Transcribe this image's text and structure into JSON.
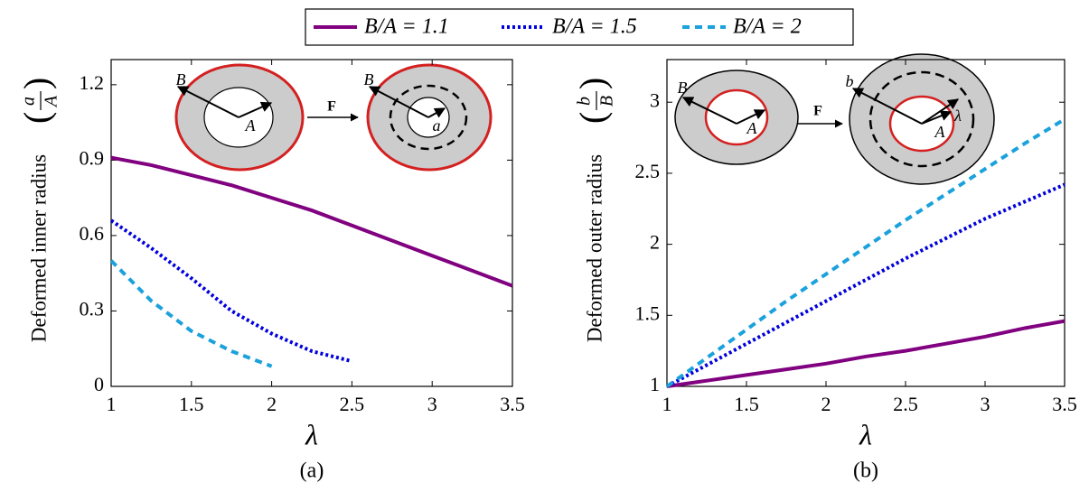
{
  "legend": {
    "position": "top-center"
  },
  "chart_data": [
    {
      "type": "line",
      "xlabel": "λ",
      "ylabel": "Deformed inner radius",
      "ylabel_num": "a",
      "ylabel_den": "A",
      "caption": "(a)",
      "inset_labels": [
        "B",
        "A",
        "F",
        "B",
        "a"
      ],
      "x": [
        1,
        1.25,
        1.5,
        1.75,
        2,
        2.25,
        2.5,
        2.75,
        3,
        3.25,
        3.5
      ],
      "xlim": [
        1,
        3.5
      ],
      "xticks": [
        1,
        1.5,
        2,
        2.5,
        3,
        3.5
      ],
      "ylim": [
        0,
        1.3
      ],
      "yticks": [
        0,
        0.3,
        0.6,
        0.9,
        1.2
      ],
      "series": [
        {
          "name": "B/A = 1.1",
          "color": "#800080",
          "style": "solid",
          "values": [
            0.91,
            0.88,
            0.84,
            0.8,
            0.75,
            0.7,
            0.64,
            0.58,
            0.52,
            0.46,
            0.4
          ]
        },
        {
          "name": "B/A = 1.5",
          "color": "#0000dd",
          "style": "dotted",
          "values": [
            0.66,
            0.55,
            0.43,
            0.3,
            0.21,
            0.14,
            0.1,
            null,
            null,
            null,
            null
          ]
        },
        {
          "name": "B/A = 2",
          "color": "#1ba1dc",
          "style": "dashed",
          "values": [
            0.5,
            0.34,
            0.22,
            0.14,
            0.08,
            null,
            null,
            null,
            null,
            null,
            null
          ]
        }
      ]
    },
    {
      "type": "line",
      "xlabel": "λ",
      "ylabel": "Deformed outer radius",
      "ylabel_num": "b",
      "ylabel_den": "B",
      "caption": "(b)",
      "inset_labels": [
        "B",
        "A",
        "F",
        "b",
        "λ",
        "A"
      ],
      "x": [
        1,
        1.25,
        1.5,
        1.75,
        2,
        2.25,
        2.5,
        2.75,
        3,
        3.25,
        3.5
      ],
      "xlim": [
        1,
        3.5
      ],
      "xticks": [
        1,
        1.5,
        2,
        2.5,
        3,
        3.5
      ],
      "ylim": [
        1,
        3.3
      ],
      "yticks": [
        1,
        1.5,
        2,
        2.5,
        3
      ],
      "series": [
        {
          "color": "#800080",
          "style": "solid",
          "values": [
            1,
            1.04,
            1.08,
            1.12,
            1.16,
            1.21,
            1.25,
            1.3,
            1.35,
            1.41,
            1.46
          ]
        },
        {
          "color": "#0000dd",
          "style": "dotted",
          "values": [
            1,
            1.15,
            1.3,
            1.45,
            1.6,
            1.75,
            1.9,
            2.04,
            2.18,
            2.3,
            2.42
          ]
        },
        {
          "color": "#1ba1dc",
          "style": "dashed",
          "values": [
            1,
            1.2,
            1.4,
            1.6,
            1.79,
            1.98,
            2.17,
            2.35,
            2.53,
            2.71,
            2.88
          ]
        }
      ]
    }
  ]
}
